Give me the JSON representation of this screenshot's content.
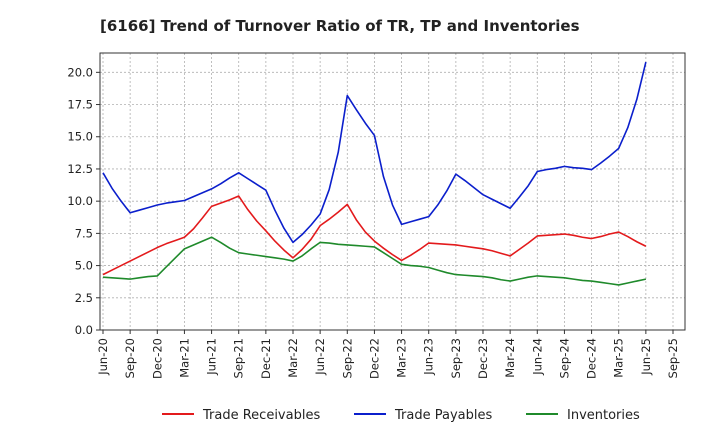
{
  "chart_data": {
    "type": "line",
    "title": "[6166]  Trend of Turnover Ratio of TR, TP and Inventories",
    "xlabel": "",
    "ylabel": "",
    "ylim": [
      0,
      21.5
    ],
    "yticks": [
      "0.0",
      "2.5",
      "5.0",
      "7.5",
      "10.0",
      "12.5",
      "15.0",
      "17.5",
      "20.0"
    ],
    "xtick_labels": [
      "Jun-20",
      "Sep-20",
      "Dec-20",
      "Mar-21",
      "Jun-21",
      "Sep-21",
      "Dec-21",
      "Mar-22",
      "Jun-22",
      "Sep-22",
      "Dec-22",
      "Mar-23",
      "Jun-23",
      "Sep-23",
      "Dec-23",
      "Mar-24",
      "Jun-24",
      "Sep-24",
      "Dec-24",
      "Mar-25",
      "Jun-25",
      "Sep-25"
    ],
    "grid": true,
    "legend_position": "bottom",
    "x_months": [
      "2020-06",
      "2020-07",
      "2020-08",
      "2020-09",
      "2020-10",
      "2020-11",
      "2020-12",
      "2021-01",
      "2021-02",
      "2021-03",
      "2021-04",
      "2021-05",
      "2021-06",
      "2021-07",
      "2021-08",
      "2021-09",
      "2021-10",
      "2021-11",
      "2021-12",
      "2022-01",
      "2022-02",
      "2022-03",
      "2022-04",
      "2022-05",
      "2022-06",
      "2022-07",
      "2022-08",
      "2022-09",
      "2022-10",
      "2022-11",
      "2022-12",
      "2023-01",
      "2023-02",
      "2023-03",
      "2023-04",
      "2023-05",
      "2023-06",
      "2023-07",
      "2023-08",
      "2023-09",
      "2023-10",
      "2023-11",
      "2023-12",
      "2024-01",
      "2024-02",
      "2024-03",
      "2024-04",
      "2024-05",
      "2024-06",
      "2024-07",
      "2024-08",
      "2024-09",
      "2024-10",
      "2024-11",
      "2024-12",
      "2025-01",
      "2025-02",
      "2025-03",
      "2025-04",
      "2025-05",
      "2025-06"
    ],
    "series": [
      {
        "name": "Trade Receivables",
        "color": "#e31a1c",
        "values": [
          4.3,
          4.65,
          5.0,
          5.35,
          5.7,
          6.05,
          6.4,
          6.7,
          6.95,
          7.2,
          7.85,
          8.7,
          9.6,
          9.85,
          10.1,
          10.4,
          9.35,
          8.45,
          7.7,
          6.9,
          6.2,
          5.6,
          6.25,
          7.05,
          8.1,
          8.6,
          9.15,
          9.75,
          8.55,
          7.6,
          6.9,
          6.35,
          5.85,
          5.4,
          5.8,
          6.25,
          6.75,
          6.7,
          6.65,
          6.6,
          6.5,
          6.4,
          6.3,
          6.15,
          5.95,
          5.75,
          6.25,
          6.75,
          7.3,
          7.35,
          7.4,
          7.45,
          7.35,
          7.2,
          7.1,
          7.25,
          7.45,
          7.6,
          7.25,
          6.85,
          6.5
        ]
      },
      {
        "name": "Trade Payables",
        "color": "#0b1fcc",
        "values": [
          12.2,
          11.0,
          10.0,
          9.1,
          9.3,
          9.5,
          9.7,
          9.85,
          9.95,
          10.05,
          10.35,
          10.65,
          10.95,
          11.35,
          11.8,
          12.2,
          11.75,
          11.3,
          10.85,
          9.3,
          7.9,
          6.8,
          7.4,
          8.15,
          9.0,
          10.9,
          13.8,
          18.2,
          17.1,
          16.05,
          15.1,
          11.9,
          9.7,
          8.2,
          8.4,
          8.6,
          8.8,
          9.7,
          10.8,
          12.1,
          11.6,
          11.05,
          10.5,
          10.15,
          9.8,
          9.45,
          10.3,
          11.2,
          12.3,
          12.45,
          12.55,
          12.7,
          12.6,
          12.55,
          12.45,
          12.95,
          13.5,
          14.1,
          15.7,
          17.9,
          20.8
        ]
      },
      {
        "name": "Inventories",
        "color": "#1f8a2b",
        "values": [
          4.1,
          4.05,
          4.0,
          3.95,
          4.05,
          4.15,
          4.2,
          4.9,
          5.6,
          6.3,
          6.6,
          6.9,
          7.2,
          6.8,
          6.35,
          6.0,
          5.9,
          5.8,
          5.7,
          5.6,
          5.5,
          5.35,
          5.75,
          6.3,
          6.8,
          6.75,
          6.65,
          6.6,
          6.55,
          6.5,
          6.45,
          6.0,
          5.55,
          5.1,
          5.0,
          4.95,
          4.85,
          4.65,
          4.45,
          4.3,
          4.25,
          4.2,
          4.15,
          4.05,
          3.9,
          3.8,
          3.95,
          4.1,
          4.2,
          4.15,
          4.1,
          4.05,
          3.95,
          3.85,
          3.8,
          3.7,
          3.6,
          3.5,
          3.65,
          3.8,
          3.95
        ]
      }
    ]
  }
}
